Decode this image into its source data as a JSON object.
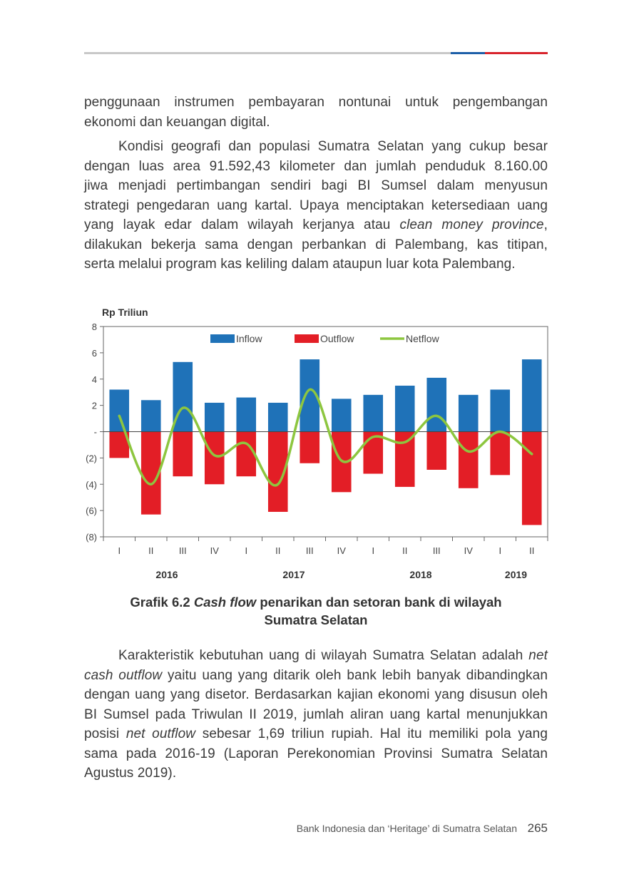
{
  "paragraph1": {
    "lines": [
      "penggunaan instrumen pembayaran nontunai untuk pengembangan",
      "ekonomi dan keuangan digital."
    ]
  },
  "paragraph2": {
    "lines": [
      "Kondisi geografi dan populasi Sumatra Selatan yang cukup besar",
      "dengan luas area 91.592,43 kilometer dan jumlah penduduk 8.160.00",
      "jiwa menjadi pertimbangan sendiri bagi BI Sumsel dalam menyusun",
      "strategi pengedaran uang kartal. Upaya menciptakan ketersediaan uang",
      "yang layak edar dalam wilayah kerjanya atau ",
      "clean money province",
      ",",
      "dilakukan bekerja sama dengan perbankan di Palembang, kas titipan,",
      "serta melalui program kas keliling dalam ataupun luar kota Palembang."
    ]
  },
  "caption": {
    "prefix": "Grafik 6.2 ",
    "italic": "Cash flow",
    "suffix": " penarikan dan setoran bank di wilayah",
    "line2": "Sumatra Selatan"
  },
  "paragraph3": {
    "l1a": "Karakteristik kebutuhan uang di wilayah Sumatra Selatan adalah ",
    "l1b": "net",
    "l2a": "cash outflow",
    "l2b": " yaitu uang yang ditarik oleh bank lebih banyak dibandingkan",
    "l3": "dengan uang yang disetor. Berdasarkan kajian ekonomi yang disusun oleh",
    "l4": "BI Sumsel pada Triwulan II 2019, jumlah aliran uang kartal menunjukkan",
    "l5a": "posisi ",
    "l5b": "net outflow",
    "l5c": " sebesar 1,69 triliun rupiah. Hal itu memiliki pola yang",
    "l6": "sama pada 2016-19 (Laporan Perekonomian Provinsi Sumatra Selatan",
    "l7": "Agustus 2019)."
  },
  "footer": {
    "text": "Bank Indonesia dan ‘Heritage’ di Sumatra Selatan",
    "page": "265"
  },
  "chart_data": {
    "type": "bar",
    "ylabel": "Rp Triliun",
    "ylim": [
      -8,
      8
    ],
    "yticks": [
      8,
      6,
      4,
      2,
      0,
      -2,
      -4,
      -6,
      -8
    ],
    "ytick_labels": [
      "8",
      "6",
      "4",
      "2",
      "-",
      "(2)",
      "(4)",
      "(6)",
      "(8)"
    ],
    "categories": [
      "I",
      "II",
      "III",
      "IV",
      "I",
      "II",
      "III",
      "IV",
      "I",
      "II",
      "III",
      "IV",
      "I",
      "II"
    ],
    "years": [
      {
        "label": "2016",
        "from": 0,
        "to": 3
      },
      {
        "label": "2017",
        "from": 4,
        "to": 7
      },
      {
        "label": "2018",
        "from": 8,
        "to": 11
      },
      {
        "label": "2019",
        "from": 12,
        "to": 13
      }
    ],
    "legend_position": "top",
    "series": [
      {
        "name": "Inflow",
        "kind": "bar",
        "color": "#1f72b8",
        "values": [
          3.2,
          2.4,
          5.3,
          2.2,
          2.6,
          2.2,
          5.5,
          2.5,
          2.8,
          3.5,
          4.1,
          2.8,
          3.2,
          5.5
        ]
      },
      {
        "name": "Outflow",
        "kind": "bar",
        "color": "#e31e26",
        "values": [
          -2.0,
          -6.3,
          -3.4,
          -4.0,
          -3.4,
          -6.1,
          -2.4,
          -4.6,
          -3.2,
          -4.2,
          -2.9,
          -4.3,
          -3.3,
          -7.1
        ]
      },
      {
        "name": "Netflow",
        "kind": "line",
        "color": "#8dc63f",
        "values": [
          1.2,
          -4.0,
          1.8,
          -1.8,
          -0.9,
          -4.0,
          3.2,
          -2.2,
          -0.4,
          -0.8,
          1.2,
          -1.5,
          0.0,
          -1.7
        ]
      }
    ]
  }
}
